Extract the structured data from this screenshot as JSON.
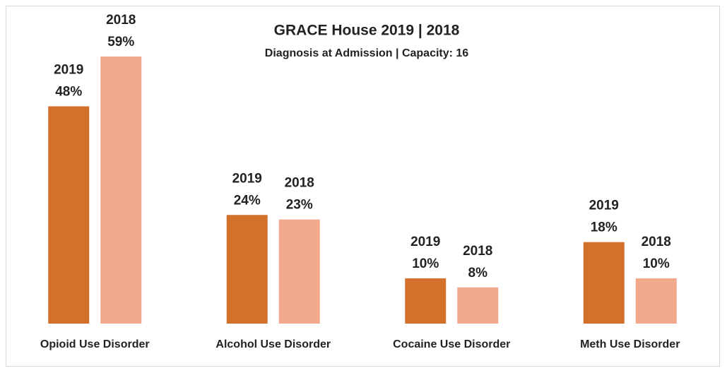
{
  "chart_data": {
    "type": "bar",
    "title": "GRACE House  2019 | 2018",
    "subtitle": "Diagnosis at Admission | Capacity: 16",
    "categories": [
      "Opioid Use Disorder",
      "Alcohol Use Disorder",
      "Cocaine Use Disorder",
      "Meth Use Disorder"
    ],
    "series": [
      {
        "name": "2019",
        "color": "#d2702c",
        "values": [
          48,
          24,
          10,
          18
        ],
        "value_labels": [
          "48%",
          "24%",
          "10%",
          "18%"
        ]
      },
      {
        "name": "2018",
        "color": "#f2a98b",
        "values": [
          59,
          23,
          8,
          10
        ],
        "value_labels": [
          "59%",
          "23%",
          "8%",
          "10%"
        ]
      }
    ]
  }
}
